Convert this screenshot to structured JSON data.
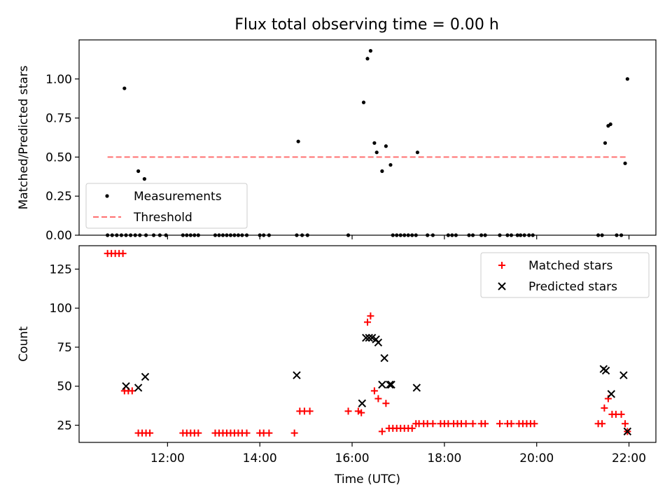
{
  "chart_data": [
    {
      "type": "scatter",
      "title": "Flux total observing time = 0.00 h",
      "xlabel": "",
      "ylabel": "Matched/Predicted stars",
      "xlim": [
        "10:05",
        "22:35"
      ],
      "ylim": [
        0,
        1.25
      ],
      "y_ticks": [
        0.0,
        0.25,
        0.5,
        0.75,
        1.0
      ],
      "y_tick_labels": [
        "0.00",
        "0.25",
        "0.50",
        "0.75",
        "1.00"
      ],
      "x_ticks": [
        "12:00",
        "14:00",
        "16:00",
        "18:00",
        "20:00",
        "22:00"
      ],
      "x_tick_labels_visible": false,
      "legend": {
        "position": "lower-left",
        "entries": [
          "Measurements",
          "Threshold"
        ]
      },
      "series": [
        {
          "name": "Measurements",
          "marker": "dot",
          "color": "#000000",
          "x": [
            "10:42",
            "10:48",
            "10:54",
            "11:00",
            "11:06",
            "11:12",
            "11:18",
            "11:24",
            "11:32",
            "11:42",
            "11:50",
            "11:58",
            "11:04",
            "11:22",
            "11:30",
            "12:20",
            "12:25",
            "12:30",
            "12:35",
            "12:40",
            "13:02",
            "13:07",
            "13:12",
            "13:17",
            "13:22",
            "13:27",
            "13:32",
            "13:37",
            "13:43",
            "14:00",
            "14:05",
            "14:12",
            "14:48",
            "14:55",
            "15:02",
            "14:50",
            "15:55",
            "16:15",
            "16:20",
            "16:24",
            "16:29",
            "16:32",
            "16:39",
            "16:44",
            "16:50",
            "16:53",
            "16:58",
            "17:03",
            "17:08",
            "17:13",
            "17:18",
            "17:23",
            "17:25",
            "17:38",
            "17:45",
            "18:05",
            "18:10",
            "18:15",
            "18:32",
            "18:37",
            "18:48",
            "18:53",
            "19:12",
            "19:22",
            "19:27",
            "19:35",
            "19:39",
            "19:44",
            "19:50",
            "19:55",
            "21:20",
            "21:25",
            "21:29",
            "21:33",
            "21:36",
            "21:44",
            "21:50",
            "21:55",
            "21:58"
          ],
          "y": [
            0,
            0,
            0,
            0,
            0,
            0,
            0,
            0,
            0,
            0,
            0,
            0,
            0.94,
            0.41,
            0.36,
            0,
            0,
            0,
            0,
            0,
            0,
            0,
            0,
            0,
            0,
            0,
            0,
            0,
            0,
            0,
            0,
            0,
            0,
            0,
            0,
            0.6,
            0,
            0.85,
            1.13,
            1.18,
            0.59,
            0.53,
            0.41,
            0.57,
            0.45,
            0,
            0,
            0,
            0,
            0,
            0,
            0,
            0.53,
            0,
            0,
            0,
            0,
            0,
            0,
            0,
            0,
            0,
            0,
            0,
            0,
            0,
            0,
            0,
            0,
            0,
            0,
            0,
            0.59,
            0.7,
            0.71,
            0,
            0,
            0.46,
            1.0
          ]
        },
        {
          "name": "Threshold",
          "style": "dashed",
          "color": "#ff7070",
          "x": [
            "10:42",
            "21:58"
          ],
          "y": [
            0.5,
            0.5
          ]
        }
      ]
    },
    {
      "type": "scatter",
      "title": "",
      "xlabel": "Time (UTC)",
      "ylabel": "Count",
      "xlim": [
        "10:05",
        "22:35"
      ],
      "ylim": [
        14,
        140
      ],
      "y_ticks": [
        25,
        50,
        75,
        100,
        125
      ],
      "y_tick_labels": [
        "25",
        "50",
        "75",
        "100",
        "125"
      ],
      "x_ticks": [
        "12:00",
        "14:00",
        "16:00",
        "18:00",
        "20:00",
        "22:00"
      ],
      "x_tick_labels": [
        "12:00",
        "14:00",
        "16:00",
        "18:00",
        "20:00",
        "22:00"
      ],
      "legend": {
        "position": "upper-right",
        "entries": [
          "Matched stars",
          "Predicted stars"
        ]
      },
      "series": [
        {
          "name": "Matched stars",
          "marker": "plus",
          "color": "#ff0000",
          "x": [
            "10:42",
            "10:47",
            "10:52",
            "10:57",
            "11:02",
            "11:04",
            "11:09",
            "11:14",
            "11:22",
            "11:27",
            "11:32",
            "11:37",
            "12:20",
            "12:25",
            "12:30",
            "12:35",
            "12:40",
            "13:02",
            "13:07",
            "13:12",
            "13:17",
            "13:22",
            "13:27",
            "13:32",
            "13:37",
            "13:43",
            "14:00",
            "14:05",
            "14:12",
            "14:45",
            "14:52",
            "14:58",
            "15:05",
            "15:55",
            "16:08",
            "16:12",
            "16:20",
            "16:24",
            "16:29",
            "16:34",
            "16:39",
            "16:44",
            "16:48",
            "16:53",
            "16:58",
            "17:03",
            "17:08",
            "17:13",
            "17:18",
            "17:23",
            "17:27",
            "17:33",
            "17:38",
            "17:45",
            "17:55",
            "18:00",
            "18:05",
            "18:12",
            "18:17",
            "18:22",
            "18:28",
            "18:37",
            "18:48",
            "18:53",
            "19:12",
            "19:22",
            "19:27",
            "19:37",
            "19:42",
            "19:47",
            "19:52",
            "19:57",
            "21:20",
            "21:25",
            "21:28",
            "21:33",
            "21:38",
            "21:43",
            "21:50",
            "21:55",
            "21:58"
          ],
          "y": [
            135,
            135,
            135,
            135,
            135,
            47,
            47,
            47,
            20,
            20,
            20,
            20,
            20,
            20,
            20,
            20,
            20,
            20,
            20,
            20,
            20,
            20,
            20,
            20,
            20,
            20,
            20,
            20,
            20,
            20,
            34,
            34,
            34,
            34,
            34,
            33,
            91,
            95,
            47,
            42,
            21,
            39,
            23,
            23,
            23,
            23,
            23,
            23,
            23,
            26,
            26,
            26,
            26,
            26,
            26,
            26,
            26,
            26,
            26,
            26,
            26,
            26,
            26,
            26,
            26,
            26,
            26,
            26,
            26,
            26,
            26,
            26,
            26,
            26,
            36,
            42,
            32,
            32,
            32,
            26,
            21
          ]
        },
        {
          "name": "Predicted stars",
          "marker": "x",
          "color": "#000000",
          "x": [
            "11:06",
            "11:22",
            "11:31",
            "14:48",
            "16:13",
            "16:18",
            "16:22",
            "16:26",
            "16:31",
            "16:34",
            "16:39",
            "16:42",
            "16:49",
            "16:51",
            "17:24",
            "21:27",
            "21:30",
            "21:37",
            "21:53",
            "21:58"
          ],
          "y": [
            50,
            49,
            56,
            57,
            39,
            81,
            81,
            81,
            80,
            78,
            51,
            68,
            51,
            51,
            49,
            61,
            60,
            45,
            57,
            21
          ]
        }
      ]
    }
  ]
}
